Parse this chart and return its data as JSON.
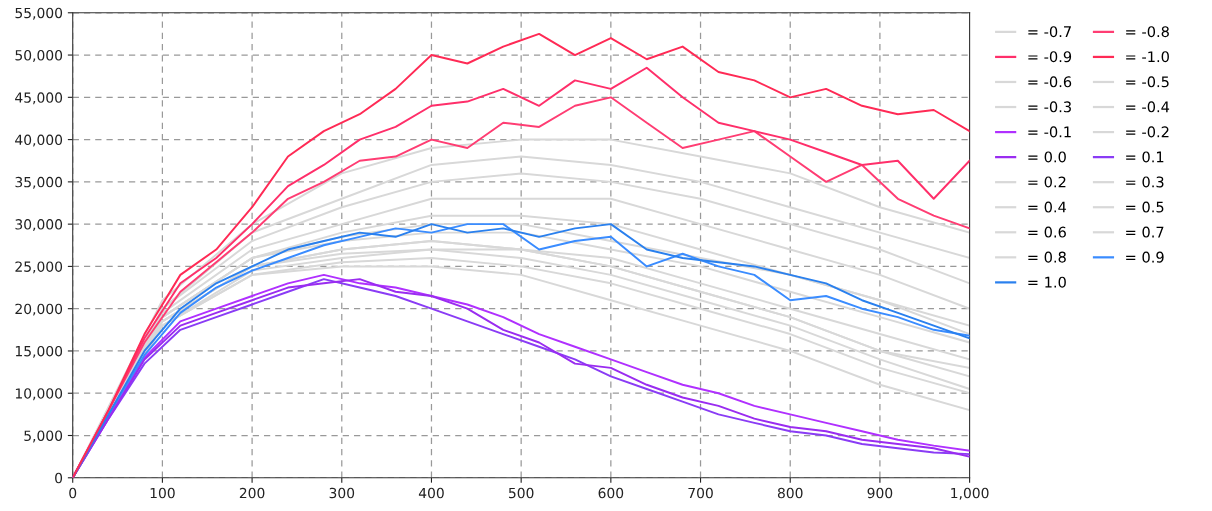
{
  "chart_data": {
    "type": "line",
    "xlim": [
      0,
      1000
    ],
    "ylim": [
      0,
      55000
    ],
    "xticks": [
      0,
      100,
      200,
      300,
      400,
      500,
      600,
      700,
      800,
      900,
      {
        "value": 1000,
        "label": "1,000"
      }
    ],
    "yticks": [
      0,
      {
        "value": 5000,
        "label": "5,000"
      },
      {
        "value": 10000,
        "label": "10,000"
      },
      {
        "value": 15000,
        "label": "15,000"
      },
      {
        "value": 20000,
        "label": "20,000"
      },
      {
        "value": 25000,
        "label": "25,000"
      },
      {
        "value": 30000,
        "label": "30,000"
      },
      {
        "value": 35000,
        "label": "35,000"
      },
      {
        "value": 40000,
        "label": "40,000"
      },
      {
        "value": 45000,
        "label": "45,000"
      },
      {
        "value": 50000,
        "label": "50,000"
      },
      {
        "value": 55000,
        "label": "55,000"
      }
    ],
    "grid": true,
    "legend": "right",
    "marker": "none",
    "line_style": "solid",
    "series": [
      {
        "name": "= -0.7",
        "color": "#d8d8d8",
        "x": [
          0,
          100,
          200,
          300,
          400,
          500,
          600,
          700,
          800,
          900,
          1000
        ],
        "values": [
          0,
          21000,
          30000,
          36000,
          39000,
          40000,
          40000,
          38000,
          36000,
          32000,
          29000
        ]
      },
      {
        "name": "= -0.8",
        "color": "#ff3d73",
        "x": [
          0,
          40,
          80,
          120,
          160,
          200,
          240,
          280,
          320,
          360,
          400,
          440,
          480,
          520,
          560,
          600,
          640,
          680,
          720,
          760,
          800,
          840,
          880,
          920,
          960,
          1000
        ],
        "values": [
          0,
          8000,
          16000,
          22000,
          25500,
          29000,
          33000,
          35000,
          37500,
          38000,
          40000,
          39000,
          42000,
          41500,
          44000,
          45000,
          42000,
          39000,
          40000,
          41000,
          38000,
          35000,
          37000,
          33000,
          31000,
          29500
        ]
      },
      {
        "name": "= -0.9",
        "color": "#ff2f6a",
        "x": [
          0,
          40,
          80,
          120,
          160,
          200,
          240,
          280,
          320,
          360,
          400,
          440,
          480,
          520,
          560,
          600,
          640,
          680,
          720,
          760,
          800,
          840,
          880,
          920,
          960,
          1000
        ],
        "values": [
          0,
          8000,
          16500,
          23000,
          26000,
          30000,
          34500,
          37000,
          40000,
          41500,
          44000,
          44500,
          46000,
          44000,
          47000,
          46000,
          48500,
          45000,
          42000,
          41000,
          40000,
          38500,
          37000,
          37500,
          33000,
          37500
        ]
      },
      {
        "name": "= -1.0",
        "color": "#ff2a55",
        "x": [
          0,
          40,
          80,
          120,
          160,
          200,
          240,
          280,
          320,
          360,
          400,
          440,
          480,
          520,
          560,
          600,
          640,
          680,
          720,
          760,
          800,
          840,
          880,
          920,
          960,
          1000
        ],
        "values": [
          0,
          8000,
          17000,
          24000,
          27000,
          32000,
          38000,
          41000,
          43000,
          46000,
          50000,
          49000,
          51000,
          52500,
          50000,
          52000,
          49500,
          51000,
          48000,
          47000,
          45000,
          46000,
          44000,
          43000,
          43500,
          41000
        ]
      },
      {
        "name": "= -0.6",
        "color": "#d8d8d8",
        "x": [
          0,
          100,
          200,
          300,
          400,
          500,
          600,
          700,
          800,
          900,
          1000
        ],
        "values": [
          0,
          20000,
          29000,
          33000,
          37000,
          38000,
          37000,
          35000,
          32000,
          29000,
          26000
        ]
      },
      {
        "name": "= -0.5",
        "color": "#d8d8d8",
        "x": [
          0,
          100,
          200,
          300,
          400,
          500,
          600,
          700,
          800,
          900,
          1000
        ],
        "values": [
          0,
          20000,
          28000,
          32000,
          35000,
          36000,
          35000,
          33000,
          30000,
          27000,
          23000
        ]
      },
      {
        "name": "= -0.3",
        "color": "#d8d8d8",
        "x": [
          0,
          100,
          200,
          300,
          400,
          500,
          600,
          700,
          800,
          900,
          1000
        ],
        "values": [
          0,
          19000,
          26000,
          29000,
          31000,
          31000,
          30000,
          27000,
          24000,
          21000,
          17000
        ]
      },
      {
        "name": "= -0.4",
        "color": "#d8d8d8",
        "x": [
          0,
          100,
          200,
          300,
          400,
          500,
          600,
          700,
          800,
          900,
          1000
        ],
        "values": [
          0,
          19500,
          27000,
          30000,
          33000,
          33000,
          33000,
          30000,
          27000,
          24000,
          20000
        ]
      },
      {
        "name": "= -0.1",
        "color": "#b030ff",
        "x": [
          0,
          40,
          80,
          120,
          160,
          200,
          240,
          280,
          320,
          360,
          400,
          440,
          480,
          520,
          560,
          600,
          640,
          680,
          720,
          760,
          800,
          840,
          880,
          920,
          960,
          1000
        ],
        "values": [
          0,
          7200,
          14200,
          18500,
          20000,
          21500,
          23000,
          24000,
          23000,
          22500,
          21500,
          20500,
          19000,
          17000,
          15500,
          14000,
          12500,
          11000,
          10000,
          8500,
          7500,
          6500,
          5500,
          4500,
          3800,
          3200
        ]
      },
      {
        "name": "= -0.2",
        "color": "#d8d8d8",
        "x": [
          0,
          100,
          200,
          300,
          400,
          500,
          600,
          700,
          800,
          900,
          1000
        ],
        "values": [
          0,
          18500,
          25000,
          27000,
          28000,
          27000,
          25000,
          22000,
          19000,
          15000,
          12000
        ]
      },
      {
        "name": "= 0.0",
        "color": "#9a2cf0",
        "x": [
          0,
          40,
          80,
          120,
          160,
          200,
          240,
          280,
          320,
          360,
          400,
          440,
          480,
          520,
          560,
          600,
          640,
          680,
          720,
          760,
          800,
          840,
          880,
          920,
          960,
          1000
        ],
        "values": [
          0,
          7000,
          14000,
          18000,
          19500,
          21000,
          22500,
          23000,
          23500,
          22000,
          21500,
          20000,
          17500,
          16000,
          13500,
          13000,
          11000,
          9500,
          8500,
          7000,
          6000,
          5500,
          4500,
          4000,
          3500,
          2500
        ]
      },
      {
        "name": "= 0.1",
        "color": "#8a3cf5",
        "x": [
          0,
          40,
          80,
          120,
          160,
          200,
          240,
          280,
          320,
          360,
          400,
          440,
          480,
          520,
          560,
          600,
          640,
          680,
          720,
          760,
          800,
          840,
          880,
          920,
          960,
          1000
        ],
        "values": [
          0,
          7000,
          13500,
          17500,
          19000,
          20500,
          22000,
          23500,
          22500,
          21500,
          20000,
          18500,
          17000,
          15500,
          14000,
          12000,
          10500,
          9000,
          7500,
          6500,
          5500,
          5000,
          4000,
          3500,
          3000,
          2800
        ]
      },
      {
        "name": "= 0.2",
        "color": "#d8d8d8",
        "x": [
          0,
          100,
          200,
          300,
          400,
          500,
          600,
          700,
          800,
          900,
          1000
        ],
        "values": [
          0,
          18000,
          24000,
          25000,
          25000,
          24000,
          21000,
          18000,
          15000,
          11000,
          8000
        ]
      },
      {
        "name": "= 0.3",
        "color": "#d8d8d8",
        "x": [
          0,
          100,
          200,
          300,
          400,
          500,
          600,
          700,
          800,
          900,
          1000
        ],
        "values": [
          0,
          18000,
          24000,
          25500,
          26000,
          25000,
          23000,
          20000,
          17000,
          13000,
          10000
        ]
      },
      {
        "name": "= 0.4",
        "color": "#d8d8d8",
        "x": [
          0,
          100,
          200,
          300,
          400,
          500,
          600,
          700,
          800,
          900,
          1000
        ],
        "values": [
          0,
          18000,
          24500,
          26000,
          27000,
          26000,
          24000,
          21000,
          18000,
          14000,
          10500
        ]
      },
      {
        "name": "= 0.5",
        "color": "#d8d8d8",
        "x": [
          0,
          100,
          200,
          300,
          400,
          500,
          600,
          700,
          800,
          900,
          1000
        ],
        "values": [
          0,
          18500,
          25000,
          26500,
          27000,
          27000,
          25000,
          22000,
          19000,
          15000,
          13000
        ]
      },
      {
        "name": "= 0.6",
        "color": "#d8d8d8",
        "x": [
          0,
          100,
          200,
          300,
          400,
          500,
          600,
          700,
          800,
          900,
          1000
        ],
        "values": [
          0,
          18500,
          25000,
          27000,
          28000,
          27000,
          26000,
          23000,
          20000,
          17000,
          14000
        ]
      },
      {
        "name": "= 0.7",
        "color": "#d8d8d8",
        "x": [
          0,
          100,
          200,
          300,
          400,
          500,
          600,
          700,
          800,
          900,
          1000
        ],
        "values": [
          0,
          19000,
          26000,
          28000,
          29000,
          29000,
          27000,
          25000,
          22000,
          19000,
          16000
        ]
      },
      {
        "name": "= 0.8",
        "color": "#d8d8d8",
        "x": [
          0,
          100,
          200,
          300,
          400,
          500,
          600,
          700,
          800,
          900,
          1000
        ],
        "values": [
          0,
          19000,
          26000,
          28500,
          30000,
          30000,
          28000,
          26000,
          24000,
          21000,
          18000
        ]
      },
      {
        "name": "= 0.9",
        "color": "#3a8cff",
        "x": [
          0,
          40,
          80,
          120,
          160,
          200,
          240,
          280,
          320,
          360,
          400,
          440,
          480,
          520,
          560,
          600,
          640,
          680,
          720,
          760,
          800,
          840,
          880,
          920,
          960,
          1000
        ],
        "values": [
          0,
          7500,
          14500,
          19500,
          22500,
          24500,
          26000,
          27500,
          28500,
          29500,
          29000,
          30000,
          30000,
          27000,
          28000,
          28500,
          25000,
          26500,
          25000,
          24000,
          21000,
          21500,
          20000,
          19000,
          17500,
          16800
        ]
      },
      {
        "name": "= 1.0",
        "color": "#2a80ee",
        "x": [
          0,
          40,
          80,
          120,
          160,
          200,
          240,
          280,
          320,
          360,
          400,
          440,
          480,
          520,
          560,
          600,
          640,
          680,
          720,
          760,
          800,
          840,
          880,
          920,
          960,
          1000
        ],
        "values": [
          0,
          7500,
          15000,
          20000,
          23000,
          25000,
          27000,
          28000,
          29000,
          28500,
          30000,
          29000,
          29500,
          28500,
          29500,
          30000,
          27000,
          26000,
          25500,
          25000,
          24000,
          23000,
          21000,
          19500,
          18000,
          16500
        ]
      }
    ]
  }
}
